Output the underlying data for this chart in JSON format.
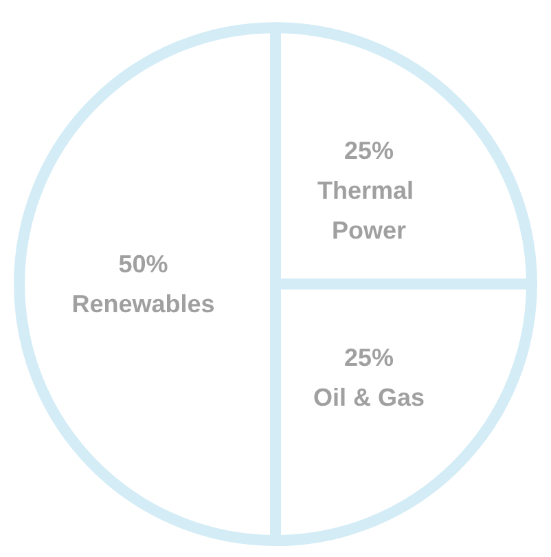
{
  "chart_data": {
    "type": "pie",
    "categories": [
      "Thermal Power",
      "Oil & Gas",
      "Renewables"
    ],
    "values": [
      25,
      25,
      50
    ],
    "colors": [
      "#ffffff",
      "#ffffff",
      "#ffffff"
    ],
    "value_labels": [
      "25%",
      "25%",
      "50%"
    ]
  }
}
